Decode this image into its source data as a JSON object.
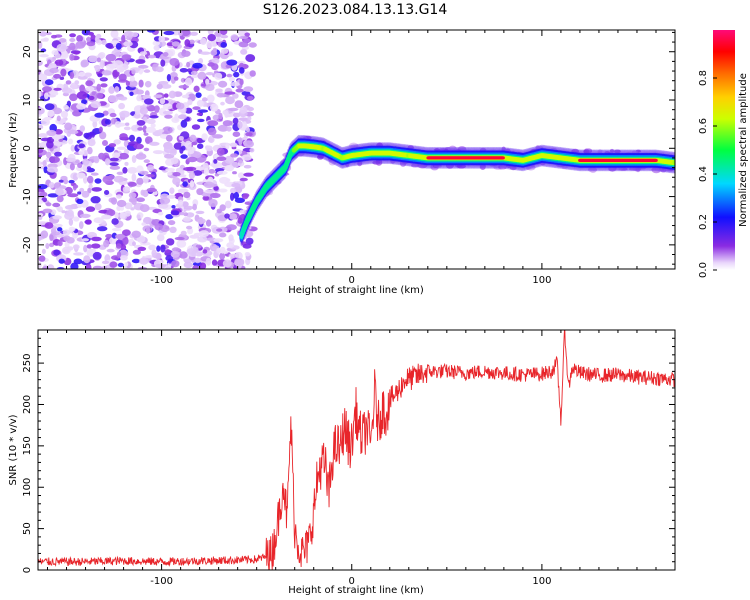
{
  "title": "S126.2023.084.13.13.G14",
  "colors": {
    "snr_line": "#e8252a",
    "axis": "#000000",
    "background": "#ffffff"
  },
  "chart_data": [
    {
      "type": "heatmap",
      "title": "S126.2023.084.13.13.G14",
      "xlabel": "Height of straight line (km)",
      "ylabel": "Frequency (Hz)",
      "xlim": [
        -165,
        170
      ],
      "ylim": [
        -25,
        24.5
      ],
      "xticks": [
        -100,
        0,
        100
      ],
      "yticks": [
        -20,
        -10,
        0,
        10,
        20
      ],
      "grid": false,
      "colormap": "rainbow (purple → blue → cyan → green → yellow → orange → red → magenta)",
      "colorbar": {
        "label": "Normalized spectral amplitude",
        "range": [
          0,
          1
        ],
        "ticks": [
          0.0,
          0.2,
          0.4,
          0.6,
          0.8
        ]
      },
      "ridge": {
        "x": [
          -58,
          -55,
          -50,
          -45,
          -40,
          -35,
          -32,
          -28,
          -25,
          -20,
          -15,
          -10,
          -5,
          0,
          10,
          20,
          30,
          40,
          60,
          80,
          90,
          100,
          110,
          120,
          140,
          160,
          170
        ],
        "y": [
          -18,
          -15,
          -11,
          -8,
          -6,
          -4,
          -1,
          0.5,
          0.5,
          0.3,
          0,
          -1,
          -2,
          -1.5,
          -1,
          -1,
          -1.5,
          -2,
          -2,
          -2,
          -2.5,
          -1.5,
          -2,
          -2.5,
          -2.5,
          -2.5,
          -3
        ],
        "amplitude": [
          0.4,
          0.45,
          0.45,
          0.5,
          0.45,
          0.5,
          0.55,
          0.6,
          0.9,
          0.85,
          0.6,
          0.7,
          0.6,
          0.65,
          0.9,
          0.9,
          0.6,
          0.95,
          0.95,
          0.95,
          0.7,
          0.7,
          0.9,
          0.95,
          0.95,
          0.95,
          0.6
        ]
      },
      "noise_region": {
        "x_range": [
          -165,
          -52
        ],
        "amplitude_range": [
          0.0,
          0.25
        ]
      }
    },
    {
      "type": "line",
      "xlabel": "Height of straight line (km)",
      "ylabel": "SNR (10 * v/v)",
      "xlim": [
        -165,
        170
      ],
      "ylim": [
        0,
        290
      ],
      "xticks": [
        -100,
        0,
        100
      ],
      "yticks": [
        0,
        50,
        100,
        150,
        200,
        250
      ],
      "grid": false,
      "series": [
        {
          "x": [
            -165,
            -140,
            -120,
            -100,
            -80,
            -60,
            -50,
            -42,
            -38,
            -36,
            -34,
            -32,
            -30,
            -28,
            -26,
            -24,
            -22,
            -20,
            -18,
            -16,
            -14,
            -12,
            -10,
            -8,
            -6,
            -4,
            -2,
            0,
            2,
            4,
            6,
            8,
            10,
            12,
            14,
            16,
            18,
            20,
            24,
            28,
            32,
            36,
            40,
            50,
            60,
            70,
            80,
            90,
            100,
            105,
            108,
            110,
            112,
            114,
            116,
            120,
            130,
            140,
            150,
            160,
            170
          ],
          "y": [
            10,
            10,
            11,
            10,
            11,
            12,
            13,
            18,
            70,
            110,
            60,
            180,
            50,
            30,
            20,
            25,
            40,
            70,
            110,
            130,
            125,
            90,
            140,
            150,
            145,
            175,
            155,
            150,
            195,
            165,
            160,
            175,
            150,
            215,
            175,
            195,
            190,
            205,
            215,
            230,
            232,
            236,
            240,
            240,
            238,
            240,
            238,
            236,
            237,
            240,
            250,
            180,
            290,
            220,
            245,
            238,
            235,
            236,
            233,
            232,
            230
          ]
        }
      ]
    }
  ]
}
